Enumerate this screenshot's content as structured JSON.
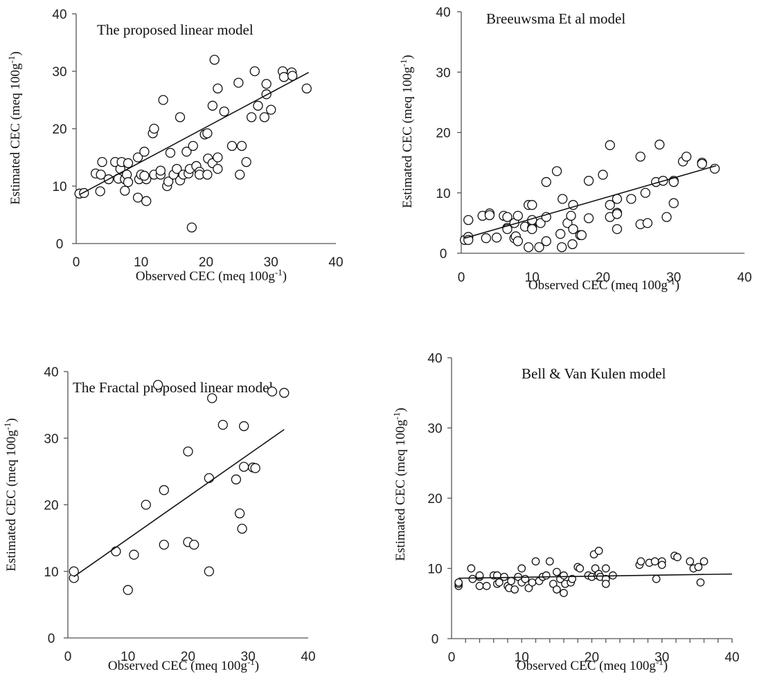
{
  "chart_data": [
    {
      "type": "scatter",
      "title": "The proposed linear model",
      "xlabel": "Observed CEC (meq 100g",
      "ylabel": "Estimated CEC (meq 100g",
      "unit_superscript": "-1",
      "label_suffix": ")",
      "xlim": [
        0,
        40
      ],
      "ylim": [
        0,
        40
      ],
      "xticks": [
        "0",
        "10",
        "20",
        "30",
        "40"
      ],
      "yticks": [
        "0",
        "10",
        "20",
        "30",
        "40"
      ],
      "grid": false,
      "trendline": {
        "x": [
          0.5,
          35.8
        ],
        "y": [
          8.5,
          29.8
        ]
      },
      "points": [
        {
          "x": 0.5,
          "y": 8.7
        },
        {
          "x": 1.2,
          "y": 8.8
        },
        {
          "x": 3,
          "y": 12.2
        },
        {
          "x": 3.7,
          "y": 9.1
        },
        {
          "x": 3.8,
          "y": 12
        },
        {
          "x": 4,
          "y": 14.2
        },
        {
          "x": 5,
          "y": 11.2
        },
        {
          "x": 6,
          "y": 14.2
        },
        {
          "x": 6.5,
          "y": 11.3
        },
        {
          "x": 6.8,
          "y": 13
        },
        {
          "x": 7,
          "y": 14.2
        },
        {
          "x": 7.5,
          "y": 9.2
        },
        {
          "x": 7.5,
          "y": 11.2
        },
        {
          "x": 7.8,
          "y": 12
        },
        {
          "x": 8,
          "y": 10.7
        },
        {
          "x": 8,
          "y": 14
        },
        {
          "x": 9.5,
          "y": 8
        },
        {
          "x": 9.5,
          "y": 15
        },
        {
          "x": 9.7,
          "y": 11.2
        },
        {
          "x": 10,
          "y": 12
        },
        {
          "x": 10.5,
          "y": 16
        },
        {
          "x": 10.8,
          "y": 11.2
        },
        {
          "x": 10.8,
          "y": 7.4
        },
        {
          "x": 10.5,
          "y": 11.8
        },
        {
          "x": 11.8,
          "y": 19.2
        },
        {
          "x": 12,
          "y": 20
        },
        {
          "x": 12,
          "y": 12
        },
        {
          "x": 13,
          "y": 12
        },
        {
          "x": 13,
          "y": 12.7
        },
        {
          "x": 13.4,
          "y": 25
        },
        {
          "x": 14,
          "y": 10
        },
        {
          "x": 14.2,
          "y": 10.8
        },
        {
          "x": 14.5,
          "y": 15.8
        },
        {
          "x": 15,
          "y": 12
        },
        {
          "x": 15.5,
          "y": 13
        },
        {
          "x": 16,
          "y": 22
        },
        {
          "x": 16,
          "y": 11
        },
        {
          "x": 16.5,
          "y": 12
        },
        {
          "x": 17,
          "y": 16
        },
        {
          "x": 17.3,
          "y": 12.2
        },
        {
          "x": 17.5,
          "y": 13
        },
        {
          "x": 17.8,
          "y": 2.8
        },
        {
          "x": 18,
          "y": 17
        },
        {
          "x": 18.5,
          "y": 13.5
        },
        {
          "x": 19,
          "y": 12.5
        },
        {
          "x": 19,
          "y": 12
        },
        {
          "x": 19.8,
          "y": 19
        },
        {
          "x": 20.2,
          "y": 19.2
        },
        {
          "x": 20.2,
          "y": 12
        },
        {
          "x": 20.3,
          "y": 14.8
        },
        {
          "x": 21,
          "y": 24
        },
        {
          "x": 21,
          "y": 14
        },
        {
          "x": 21.3,
          "y": 32
        },
        {
          "x": 21.8,
          "y": 27
        },
        {
          "x": 21.8,
          "y": 15
        },
        {
          "x": 21.8,
          "y": 13
        },
        {
          "x": 22.8,
          "y": 23
        },
        {
          "x": 24,
          "y": 17
        },
        {
          "x": 25,
          "y": 28
        },
        {
          "x": 25.2,
          "y": 12
        },
        {
          "x": 25.5,
          "y": 17
        },
        {
          "x": 26.2,
          "y": 14.2
        },
        {
          "x": 27,
          "y": 22
        },
        {
          "x": 27.5,
          "y": 30
        },
        {
          "x": 28,
          "y": 24
        },
        {
          "x": 29,
          "y": 22
        },
        {
          "x": 29.3,
          "y": 27.8
        },
        {
          "x": 29.3,
          "y": 26
        },
        {
          "x": 30,
          "y": 23.3
        },
        {
          "x": 31.8,
          "y": 30
        },
        {
          "x": 32,
          "y": 29
        },
        {
          "x": 33.2,
          "y": 29.8
        },
        {
          "x": 33.3,
          "y": 29.2
        },
        {
          "x": 35.5,
          "y": 27
        }
      ]
    },
    {
      "type": "scatter",
      "title": "Breeuwsma Et al model",
      "xlabel": "Observed CEC (meq 100g",
      "ylabel": "Estimated CEC (meq 100g",
      "unit_superscript": "-1",
      "label_suffix": ")",
      "xlim": [
        0,
        40
      ],
      "ylim": [
        0,
        40
      ],
      "xticks": [
        "0",
        "10",
        "20",
        "30",
        "40"
      ],
      "yticks": [
        "0",
        "10",
        "20",
        "30",
        "40"
      ],
      "grid": false,
      "trendline": {
        "x": [
          0.5,
          36
        ],
        "y": [
          2.5,
          14.5
        ]
      },
      "points": [
        {
          "x": 0.5,
          "y": 2.2
        },
        {
          "x": 1,
          "y": 5.5
        },
        {
          "x": 1,
          "y": 2.7
        },
        {
          "x": 1,
          "y": 2.2
        },
        {
          "x": 3,
          "y": 6.2
        },
        {
          "x": 3.5,
          "y": 2.5
        },
        {
          "x": 4,
          "y": 6.6
        },
        {
          "x": 4,
          "y": 6.3
        },
        {
          "x": 5,
          "y": 2.6
        },
        {
          "x": 6,
          "y": 6.2
        },
        {
          "x": 6.5,
          "y": 6
        },
        {
          "x": 6.5,
          "y": 4.2
        },
        {
          "x": 6.5,
          "y": 4
        },
        {
          "x": 7.5,
          "y": 5
        },
        {
          "x": 7.5,
          "y": 2.5
        },
        {
          "x": 7.7,
          "y": 2.8
        },
        {
          "x": 8,
          "y": 2
        },
        {
          "x": 8,
          "y": 6.2
        },
        {
          "x": 9,
          "y": 4.4
        },
        {
          "x": 9.5,
          "y": 8
        },
        {
          "x": 9.5,
          "y": 1
        },
        {
          "x": 10,
          "y": 8
        },
        {
          "x": 10,
          "y": 5.2
        },
        {
          "x": 10,
          "y": 4.2
        },
        {
          "x": 10,
          "y": 4
        },
        {
          "x": 10,
          "y": 5.5
        },
        {
          "x": 11,
          "y": 1
        },
        {
          "x": 11.2,
          "y": 5
        },
        {
          "x": 12,
          "y": 11.8
        },
        {
          "x": 12,
          "y": 6
        },
        {
          "x": 12,
          "y": 2
        },
        {
          "x": 13.5,
          "y": 13.6
        },
        {
          "x": 14,
          "y": 3.2
        },
        {
          "x": 14.2,
          "y": 1
        },
        {
          "x": 14.3,
          "y": 9
        },
        {
          "x": 15,
          "y": 5
        },
        {
          "x": 15.5,
          "y": 6.2
        },
        {
          "x": 15.7,
          "y": 1.5
        },
        {
          "x": 15.8,
          "y": 8
        },
        {
          "x": 15.8,
          "y": 4
        },
        {
          "x": 16.8,
          "y": 3
        },
        {
          "x": 17,
          "y": 3
        },
        {
          "x": 18,
          "y": 12
        },
        {
          "x": 18,
          "y": 5.8
        },
        {
          "x": 20,
          "y": 13
        },
        {
          "x": 21,
          "y": 17.9
        },
        {
          "x": 21,
          "y": 8
        },
        {
          "x": 21,
          "y": 6
        },
        {
          "x": 22,
          "y": 9
        },
        {
          "x": 22,
          "y": 6.7
        },
        {
          "x": 22,
          "y": 6.5
        },
        {
          "x": 22,
          "y": 4
        },
        {
          "x": 24,
          "y": 9
        },
        {
          "x": 25.3,
          "y": 16
        },
        {
          "x": 25.3,
          "y": 4.8
        },
        {
          "x": 26,
          "y": 10
        },
        {
          "x": 26.3,
          "y": 5
        },
        {
          "x": 27.5,
          "y": 11.8
        },
        {
          "x": 28,
          "y": 18
        },
        {
          "x": 28.5,
          "y": 12
        },
        {
          "x": 29,
          "y": 6
        },
        {
          "x": 30,
          "y": 12
        },
        {
          "x": 30,
          "y": 11.8
        },
        {
          "x": 30,
          "y": 8.3
        },
        {
          "x": 31.3,
          "y": 15.2
        },
        {
          "x": 31.8,
          "y": 16
        },
        {
          "x": 34,
          "y": 15
        },
        {
          "x": 34,
          "y": 14.8
        },
        {
          "x": 35.8,
          "y": 14
        }
      ]
    },
    {
      "type": "scatter",
      "title": "The Fractal proposed linear model",
      "xlabel": "Observed CEC (meq 100g",
      "ylabel": "Estimated CEC (meq 100g",
      "unit_superscript": "-1",
      "label_suffix": ")",
      "xlim": [
        0,
        40
      ],
      "ylim": [
        0,
        40
      ],
      "xticks": [
        "0",
        "10",
        "20",
        "30",
        "40"
      ],
      "yticks": [
        "0",
        "10",
        "20",
        "30",
        "40"
      ],
      "grid": false,
      "trendline": {
        "x": [
          1,
          36
        ],
        "y": [
          9.2,
          31.3
        ]
      },
      "points": [
        {
          "x": 1,
          "y": 9
        },
        {
          "x": 1,
          "y": 10
        },
        {
          "x": 8,
          "y": 13
        },
        {
          "x": 10,
          "y": 7.2
        },
        {
          "x": 11,
          "y": 12.5
        },
        {
          "x": 13,
          "y": 20
        },
        {
          "x": 15,
          "y": 38
        },
        {
          "x": 16,
          "y": 22.2
        },
        {
          "x": 16,
          "y": 14
        },
        {
          "x": 20,
          "y": 28
        },
        {
          "x": 20,
          "y": 14.4
        },
        {
          "x": 21,
          "y": 14
        },
        {
          "x": 23.5,
          "y": 10
        },
        {
          "x": 23.5,
          "y": 24
        },
        {
          "x": 24,
          "y": 36
        },
        {
          "x": 25.8,
          "y": 32
        },
        {
          "x": 28,
          "y": 23.8
        },
        {
          "x": 28.6,
          "y": 18.7
        },
        {
          "x": 29,
          "y": 16.4
        },
        {
          "x": 29.3,
          "y": 31.8
        },
        {
          "x": 29.3,
          "y": 25.7
        },
        {
          "x": 30.8,
          "y": 25.6
        },
        {
          "x": 31.2,
          "y": 25.5
        },
        {
          "x": 34,
          "y": 37
        },
        {
          "x": 36,
          "y": 36.8
        }
      ]
    },
    {
      "type": "scatter",
      "title": "Bell & Van Kulen model",
      "xlabel": "Observed CEC (meq 100g",
      "ylabel": "Estimated CEC (meq 100g",
      "unit_superscript": "-1",
      "label_suffix": ")",
      "xlim": [
        0,
        40
      ],
      "ylim": [
        0,
        40
      ],
      "xticks": [
        "0",
        "10",
        "20",
        "30",
        "40"
      ],
      "yticks": [
        "0",
        "10",
        "20",
        "30",
        "40"
      ],
      "grid": false,
      "minor_xticks": true,
      "trendline": {
        "x": [
          1,
          40
        ],
        "y": [
          8.6,
          9.2
        ]
      },
      "points": [
        {
          "x": 1,
          "y": 7.5
        },
        {
          "x": 1,
          "y": 7.8
        },
        {
          "x": 1,
          "y": 8
        },
        {
          "x": 2.8,
          "y": 10
        },
        {
          "x": 3,
          "y": 8.5
        },
        {
          "x": 4,
          "y": 8.8
        },
        {
          "x": 4,
          "y": 9
        },
        {
          "x": 4,
          "y": 7.5
        },
        {
          "x": 5,
          "y": 7.5
        },
        {
          "x": 6,
          "y": 9
        },
        {
          "x": 6.5,
          "y": 9
        },
        {
          "x": 6.5,
          "y": 7.8
        },
        {
          "x": 6.8,
          "y": 8
        },
        {
          "x": 7.5,
          "y": 8.8
        },
        {
          "x": 8,
          "y": 7.5
        },
        {
          "x": 8.2,
          "y": 7.2
        },
        {
          "x": 8.5,
          "y": 8.2
        },
        {
          "x": 9,
          "y": 7
        },
        {
          "x": 9.5,
          "y": 8.8
        },
        {
          "x": 10,
          "y": 10
        },
        {
          "x": 10,
          "y": 8
        },
        {
          "x": 10.5,
          "y": 8.5
        },
        {
          "x": 11,
          "y": 7.2
        },
        {
          "x": 11.5,
          "y": 8
        },
        {
          "x": 12,
          "y": 11
        },
        {
          "x": 12.5,
          "y": 8.2
        },
        {
          "x": 13,
          "y": 8.8
        },
        {
          "x": 13.5,
          "y": 9
        },
        {
          "x": 14,
          "y": 11
        },
        {
          "x": 14.5,
          "y": 7.8
        },
        {
          "x": 15,
          "y": 9.5
        },
        {
          "x": 15,
          "y": 7
        },
        {
          "x": 15.5,
          "y": 8.5
        },
        {
          "x": 16,
          "y": 6.5
        },
        {
          "x": 16,
          "y": 9
        },
        {
          "x": 16.2,
          "y": 7.8
        },
        {
          "x": 17,
          "y": 8
        },
        {
          "x": 17.2,
          "y": 8.5
        },
        {
          "x": 18,
          "y": 10.2
        },
        {
          "x": 18.3,
          "y": 10
        },
        {
          "x": 19.5,
          "y": 9
        },
        {
          "x": 20,
          "y": 8.8
        },
        {
          "x": 20.3,
          "y": 12
        },
        {
          "x": 20.5,
          "y": 10
        },
        {
          "x": 20.8,
          "y": 9
        },
        {
          "x": 21,
          "y": 12.5
        },
        {
          "x": 21,
          "y": 9.2
        },
        {
          "x": 21.2,
          "y": 8.8
        },
        {
          "x": 22,
          "y": 10
        },
        {
          "x": 22,
          "y": 8.5
        },
        {
          "x": 22,
          "y": 7.8
        },
        {
          "x": 23,
          "y": 9
        },
        {
          "x": 26.8,
          "y": 10.5
        },
        {
          "x": 27,
          "y": 11
        },
        {
          "x": 28.2,
          "y": 10.8
        },
        {
          "x": 29,
          "y": 11
        },
        {
          "x": 29.2,
          "y": 8.5
        },
        {
          "x": 30,
          "y": 11
        },
        {
          "x": 30,
          "y": 10.5
        },
        {
          "x": 31.8,
          "y": 11.8
        },
        {
          "x": 32.2,
          "y": 11.6
        },
        {
          "x": 34,
          "y": 11
        },
        {
          "x": 34.5,
          "y": 10
        },
        {
          "x": 35.2,
          "y": 10.2
        },
        {
          "x": 35.5,
          "y": 8
        },
        {
          "x": 36,
          "y": 11
        }
      ]
    }
  ]
}
